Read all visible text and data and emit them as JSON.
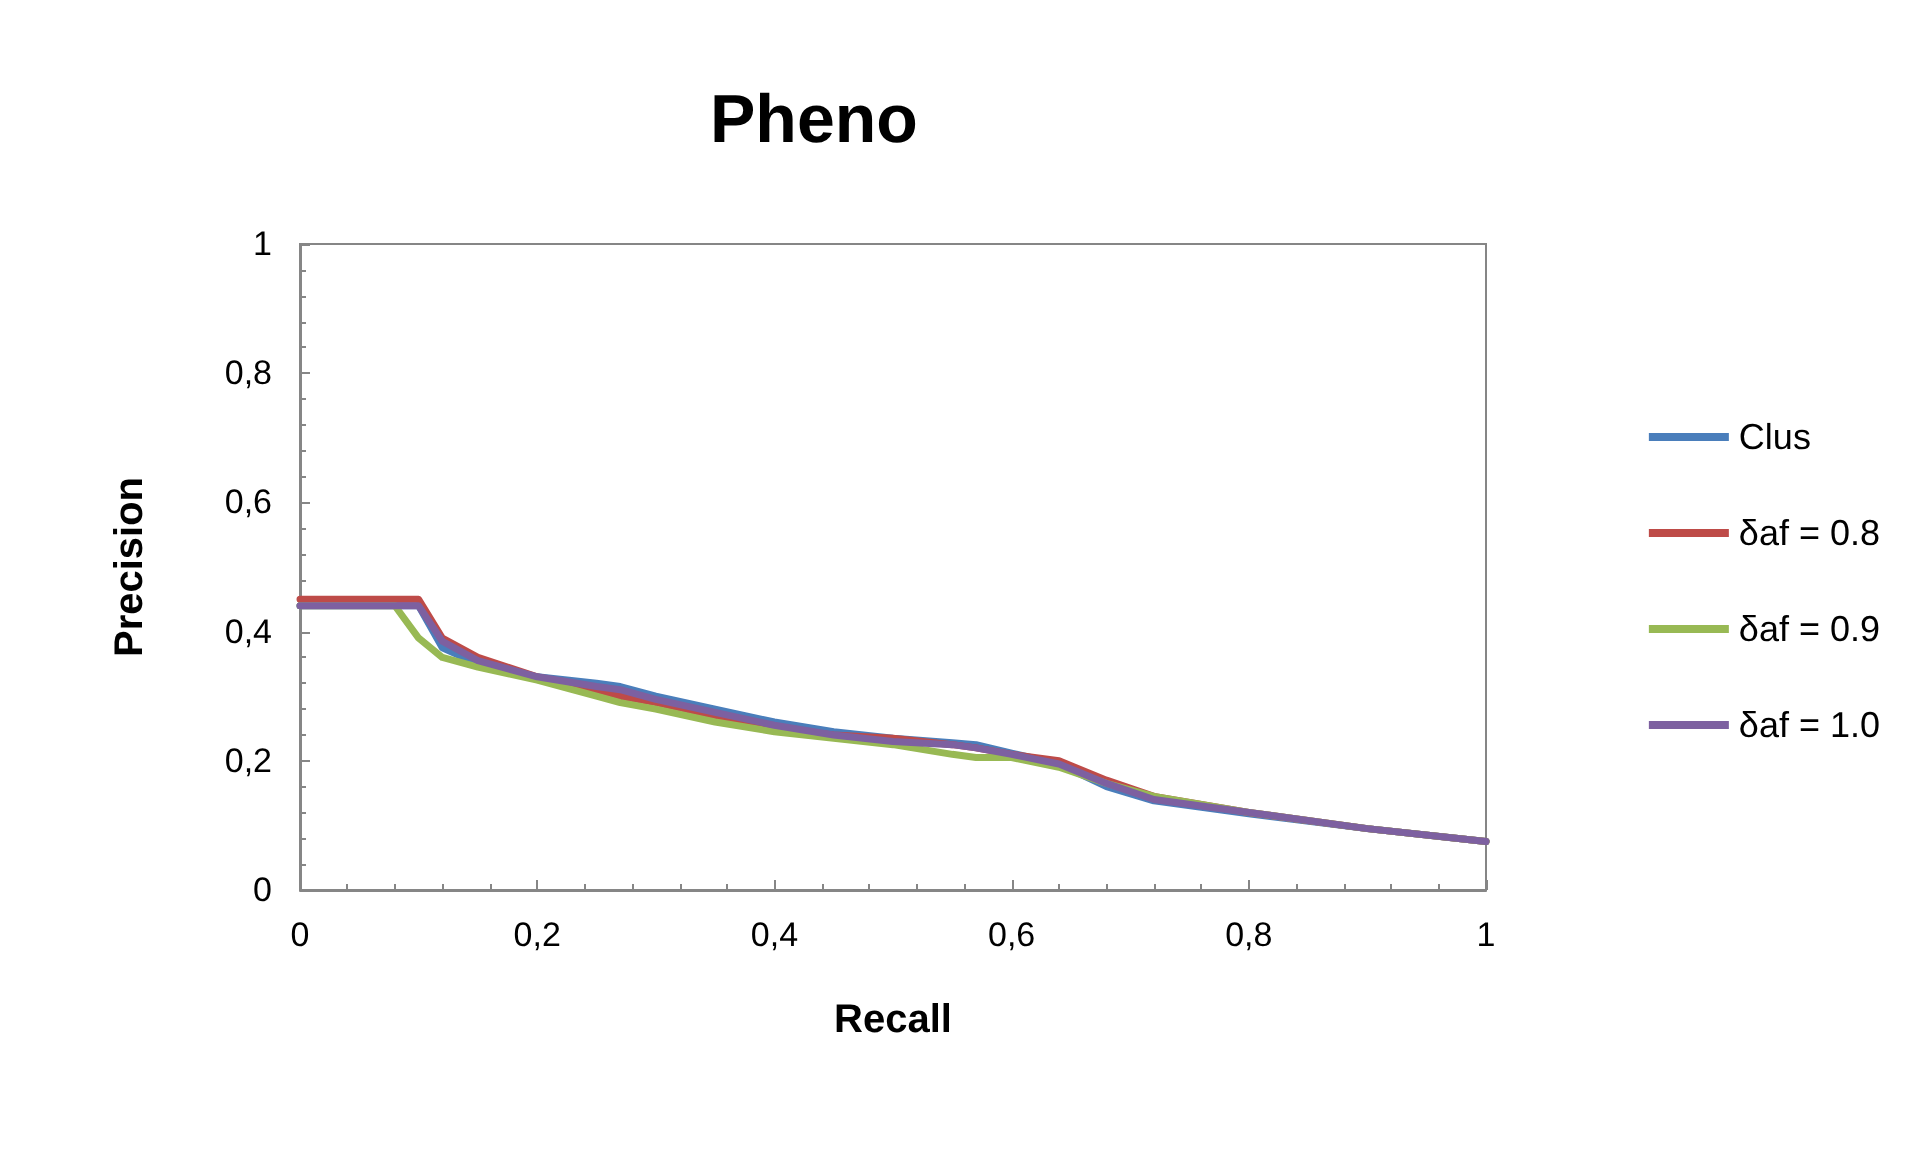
{
  "chart_data": {
    "type": "line",
    "title": "Pheno",
    "xlabel": "Recall",
    "ylabel": "Precision",
    "xlim": [
      0,
      1
    ],
    "ylim": [
      0,
      1
    ],
    "xticks": [
      {
        "value": 0,
        "label": "0"
      },
      {
        "value": 0.2,
        "label": "0,2"
      },
      {
        "value": 0.4,
        "label": "0,4"
      },
      {
        "value": 0.6,
        "label": "0,6"
      },
      {
        "value": 0.8,
        "label": "0,8"
      },
      {
        "value": 1,
        "label": "1"
      }
    ],
    "yticks": [
      {
        "value": 0,
        "label": "0"
      },
      {
        "value": 0.2,
        "label": "0,2"
      },
      {
        "value": 0.4,
        "label": "0,4"
      },
      {
        "value": 0.6,
        "label": "0,6"
      },
      {
        "value": 0.8,
        "label": "0,8"
      },
      {
        "value": 1,
        "label": "1"
      }
    ],
    "grid": false,
    "legend": "right",
    "marker": "none",
    "line_style": "solid",
    "x": [
      0,
      0.08,
      0.1,
      0.12,
      0.15,
      0.2,
      0.25,
      0.27,
      0.3,
      0.35,
      0.4,
      0.45,
      0.5,
      0.55,
      0.57,
      0.6,
      0.64,
      0.68,
      0.72,
      0.8,
      0.9,
      1
    ],
    "series": [
      {
        "name": "Clus",
        "color": "#4a7ebb",
        "values": [
          0.44,
          0.44,
          0.44,
          0.375,
          0.35,
          0.33,
          0.32,
          0.315,
          0.3,
          0.28,
          0.26,
          0.245,
          0.235,
          0.228,
          0.225,
          0.212,
          0.195,
          0.16,
          0.138,
          0.118,
          0.095,
          0.075
        ]
      },
      {
        "name": "δaf = 0.8",
        "color": "#be4b48",
        "values": [
          0.45,
          0.45,
          0.45,
          0.39,
          0.36,
          0.33,
          0.31,
          0.3,
          0.29,
          0.27,
          0.25,
          0.24,
          0.235,
          0.225,
          0.22,
          0.21,
          0.2,
          0.17,
          0.145,
          0.12,
          0.095,
          0.075
        ]
      },
      {
        "name": "δaf = 0.9",
        "color": "#98b954",
        "values": [
          0.44,
          0.44,
          0.39,
          0.36,
          0.345,
          0.325,
          0.3,
          0.29,
          0.28,
          0.26,
          0.245,
          0.235,
          0.225,
          0.21,
          0.205,
          0.205,
          0.19,
          0.165,
          0.145,
          0.12,
          0.095,
          0.075
        ]
      },
      {
        "name": "δaf = 1.0",
        "color": "#7d60a0",
        "values": [
          0.44,
          0.44,
          0.44,
          0.385,
          0.355,
          0.33,
          0.315,
          0.31,
          0.295,
          0.275,
          0.255,
          0.24,
          0.23,
          0.225,
          0.22,
          0.21,
          0.195,
          0.165,
          0.14,
          0.12,
          0.095,
          0.075
        ]
      }
    ]
  }
}
